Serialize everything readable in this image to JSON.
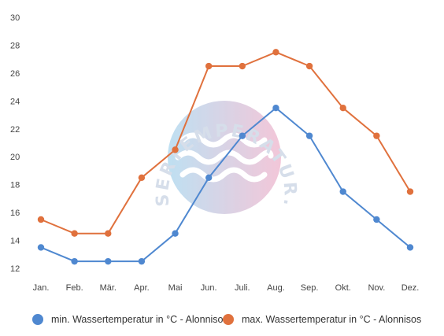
{
  "chart_data": {
    "type": "line",
    "categories": [
      "Jan.",
      "Feb.",
      "Mär.",
      "Apr.",
      "Mai",
      "Jun.",
      "Juli.",
      "Aug.",
      "Sep.",
      "Okt.",
      "Nov.",
      "Dez."
    ],
    "ylim": [
      12,
      30
    ],
    "yticks": [
      12,
      14,
      16,
      18,
      20,
      22,
      24,
      26,
      28,
      30
    ],
    "grid": false,
    "legend_position": "bottom",
    "series": [
      {
        "name": "min. Wassertemperatur in °C - Alonnisos",
        "color": "#4f88d0",
        "values": [
          13.5,
          12.5,
          12.5,
          12.5,
          14.5,
          18.5,
          21.5,
          23.5,
          21.5,
          17.5,
          15.5,
          13.5
        ]
      },
      {
        "name": "max. Wassertemperatur in °C - Alonnisos",
        "color": "#e0713d",
        "values": [
          15.5,
          14.5,
          14.5,
          18.5,
          20.5,
          26.5,
          26.5,
          27.5,
          26.5,
          23.5,
          21.5,
          17.5
        ]
      }
    ]
  },
  "watermark": {
    "text": "WASSERTEMPERATUR.ORG"
  }
}
